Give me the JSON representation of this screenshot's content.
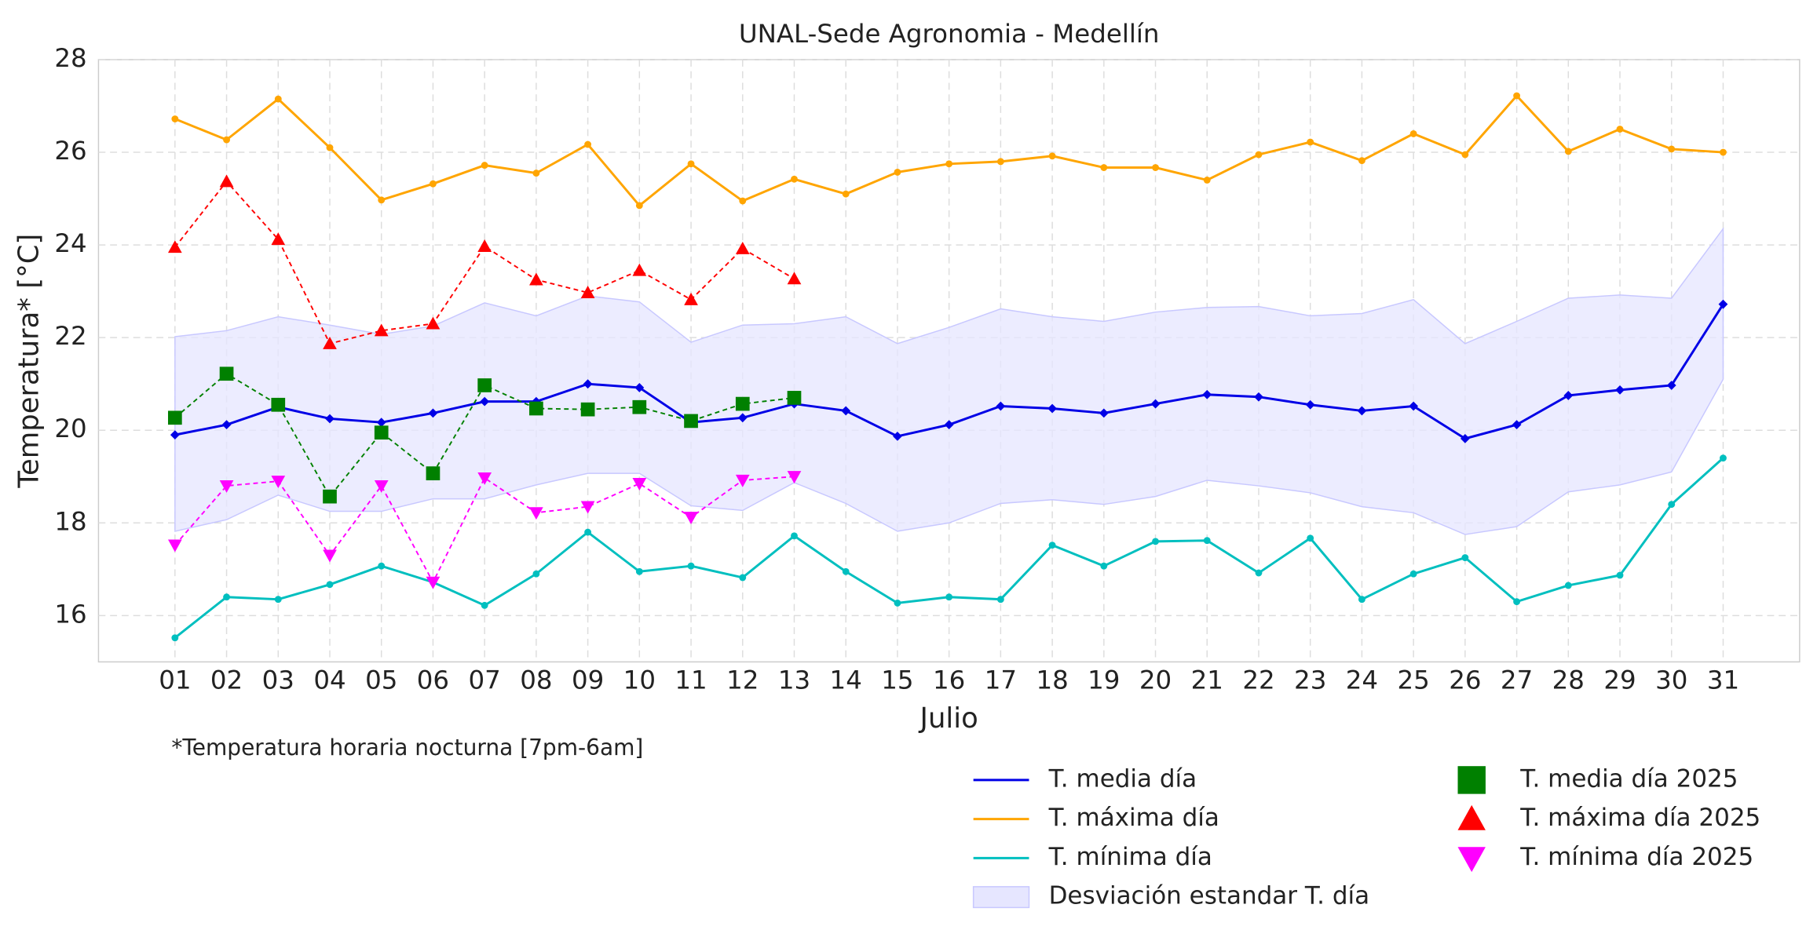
{
  "chart_data": {
    "type": "line",
    "title": "UNAL-Sede Agronomia - Medellín",
    "xlabel": "Julio",
    "ylabel": "Temperatura* [°C]",
    "note": "*Temperatura horaria nocturna [7pm-6am]",
    "categories": [
      "01",
      "02",
      "03",
      "04",
      "05",
      "06",
      "07",
      "08",
      "09",
      "10",
      "11",
      "12",
      "13",
      "14",
      "15",
      "16",
      "17",
      "18",
      "19",
      "20",
      "21",
      "22",
      "23",
      "24",
      "25",
      "26",
      "27",
      "28",
      "29",
      "30",
      "31"
    ],
    "ylim": [
      15,
      28
    ],
    "yticks": [
      16,
      18,
      20,
      22,
      24,
      26,
      28
    ],
    "grid": true,
    "band": {
      "name": "Desviación estandar T. día",
      "color": "#e6e6ff",
      "upper": [
        22.02,
        22.15,
        22.45,
        22.27,
        22.07,
        22.25,
        22.75,
        22.47,
        22.9,
        22.77,
        21.9,
        22.27,
        22.3,
        22.45,
        21.87,
        22.22,
        22.62,
        22.45,
        22.35,
        22.55,
        22.65,
        22.67,
        22.47,
        22.52,
        22.82,
        21.87,
        22.35,
        22.85,
        22.92,
        22.85,
        24.35
      ],
      "lower": [
        17.82,
        18.07,
        18.6,
        18.25,
        18.25,
        18.52,
        18.52,
        18.82,
        19.07,
        19.07,
        18.37,
        18.27,
        18.87,
        18.42,
        17.82,
        18.0,
        18.42,
        18.5,
        18.4,
        18.57,
        18.92,
        18.8,
        18.65,
        18.35,
        18.22,
        17.75,
        17.92,
        18.67,
        18.82,
        19.1,
        21.1
      ]
    },
    "series": [
      {
        "name": "T. media día",
        "color": "#0000e6",
        "marker": "diamond",
        "dashed": false,
        "values": [
          19.9,
          20.12,
          20.5,
          20.25,
          20.17,
          20.37,
          20.62,
          20.62,
          21.0,
          20.92,
          20.17,
          20.27,
          20.57,
          20.42,
          19.87,
          20.12,
          20.52,
          20.47,
          20.37,
          20.57,
          20.77,
          20.72,
          20.55,
          20.42,
          20.52,
          19.82,
          20.12,
          20.75,
          20.87,
          20.97,
          22.72
        ]
      },
      {
        "name": "T. máxima día",
        "color": "#ffa500",
        "marker": "circle",
        "dashed": false,
        "values": [
          26.72,
          26.27,
          27.15,
          26.1,
          24.97,
          25.32,
          25.72,
          25.55,
          26.17,
          24.85,
          25.75,
          24.95,
          25.42,
          25.1,
          25.57,
          25.75,
          25.8,
          25.92,
          25.67,
          25.67,
          25.4,
          25.95,
          26.22,
          25.82,
          26.4,
          25.95,
          27.22,
          26.02,
          26.5,
          26.07,
          26.0
        ]
      },
      {
        "name": "T. mínima día",
        "color": "#00bfbf",
        "marker": "circle",
        "dashed": false,
        "values": [
          15.52,
          16.4,
          16.35,
          16.67,
          17.07,
          16.72,
          16.22,
          16.9,
          17.8,
          16.95,
          17.07,
          16.82,
          17.72,
          16.95,
          16.27,
          16.4,
          16.35,
          17.52,
          17.07,
          17.6,
          17.62,
          16.92,
          17.67,
          16.35,
          16.9,
          17.25,
          16.3,
          16.65,
          16.87,
          18.4,
          19.4
        ]
      },
      {
        "name": "T. media día 2025",
        "color": "#008000",
        "marker": "square",
        "dashed": true,
        "values": [
          20.27,
          21.22,
          20.55,
          18.57,
          19.95,
          19.07,
          20.97,
          20.47,
          20.45,
          20.5,
          20.2,
          20.57,
          20.7,
          null,
          null,
          null,
          null,
          null,
          null,
          null,
          null,
          null,
          null,
          null,
          null,
          null,
          null,
          null,
          null,
          null,
          null
        ]
      },
      {
        "name": "T. máxima día 2025",
        "color": "#ff0000",
        "marker": "triangle",
        "dashed": true,
        "values": [
          23.95,
          25.37,
          24.12,
          21.87,
          22.15,
          22.3,
          23.97,
          23.25,
          22.97,
          23.45,
          22.82,
          23.92,
          23.27,
          null,
          null,
          null,
          null,
          null,
          null,
          null,
          null,
          null,
          null,
          null,
          null,
          null,
          null,
          null,
          null,
          null,
          null
        ]
      },
      {
        "name": "T. mínima día 2025",
        "color": "#ff00ff",
        "marker": "triangle-down",
        "dashed": true,
        "values": [
          17.52,
          18.8,
          18.9,
          17.3,
          18.8,
          16.72,
          18.97,
          18.22,
          18.35,
          18.85,
          18.12,
          18.92,
          19.0,
          null,
          null,
          null,
          null,
          null,
          null,
          null,
          null,
          null,
          null,
          null,
          null,
          null,
          null,
          null,
          null,
          null,
          null
        ]
      }
    ]
  }
}
